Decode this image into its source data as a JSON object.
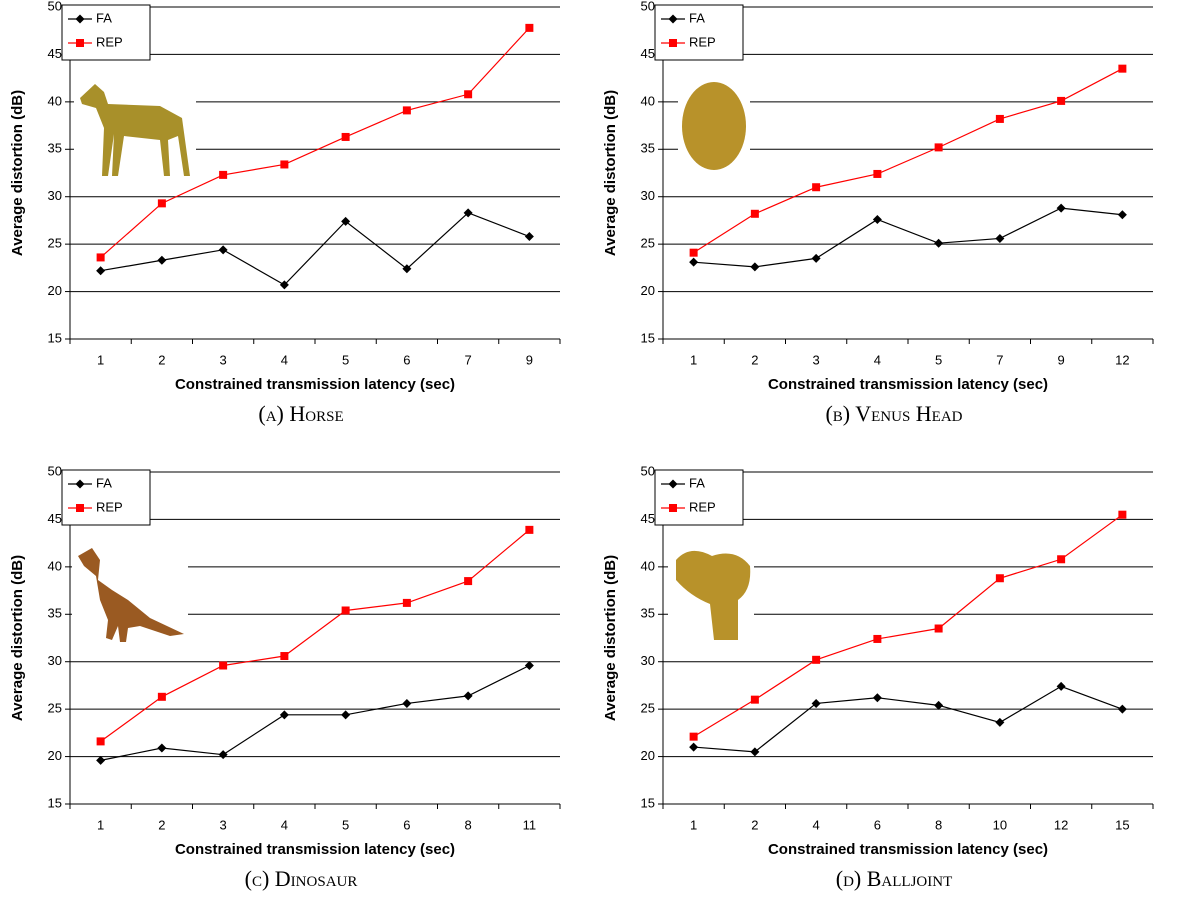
{
  "chart_data": [
    {
      "type": "line",
      "caption": "(a) Horse",
      "xlabel": "Constrained transmission latency (sec)",
      "ylabel": "Average distortion (dB)",
      "categories": [
        "1",
        "2",
        "3",
        "4",
        "5",
        "6",
        "7",
        "9"
      ],
      "series": [
        {
          "name": "FA",
          "color": "#000000",
          "marker": "diamond",
          "values": [
            22.2,
            23.3,
            24.4,
            20.7,
            27.4,
            22.4,
            28.3,
            25.8
          ]
        },
        {
          "name": "REP",
          "color": "#ff0000",
          "marker": "square",
          "values": [
            23.6,
            29.3,
            32.3,
            33.4,
            36.3,
            39.1,
            40.8,
            47.8
          ]
        }
      ],
      "ylim": [
        15,
        50
      ],
      "yticks": [
        15,
        20,
        25,
        30,
        35,
        40,
        45,
        50
      ],
      "grid": true,
      "legend": "top-left"
    },
    {
      "type": "line",
      "caption": "(b) Venus Head",
      "xlabel": "Constrained transmission latency (sec)",
      "ylabel": "Average distortion (dB)",
      "categories": [
        "1",
        "2",
        "3",
        "4",
        "5",
        "7",
        "9",
        "12"
      ],
      "series": [
        {
          "name": "FA",
          "color": "#000000",
          "marker": "diamond",
          "values": [
            23.1,
            22.6,
            23.5,
            27.6,
            25.1,
            25.6,
            28.8,
            28.1
          ]
        },
        {
          "name": "REP",
          "color": "#ff0000",
          "marker": "square",
          "values": [
            24.1,
            28.2,
            31.0,
            32.4,
            35.2,
            38.2,
            40.1,
            43.5
          ]
        }
      ],
      "ylim": [
        15,
        50
      ],
      "yticks": [
        15,
        20,
        25,
        30,
        35,
        40,
        45,
        50
      ],
      "grid": true,
      "legend": "top-left"
    },
    {
      "type": "line",
      "caption": "(c) Dinosaur",
      "xlabel": "Constrained transmission latency (sec)",
      "ylabel": "Average distortion (dB)",
      "categories": [
        "1",
        "2",
        "3",
        "4",
        "5",
        "6",
        "8",
        "11"
      ],
      "series": [
        {
          "name": "FA",
          "color": "#000000",
          "marker": "diamond",
          "values": [
            19.6,
            20.9,
            20.2,
            24.4,
            24.4,
            25.6,
            26.4,
            29.6
          ]
        },
        {
          "name": "REP",
          "color": "#ff0000",
          "marker": "square",
          "values": [
            21.6,
            26.3,
            29.6,
            30.6,
            35.4,
            36.2,
            38.5,
            43.9
          ]
        }
      ],
      "ylim": [
        15,
        50
      ],
      "yticks": [
        15,
        20,
        25,
        30,
        35,
        40,
        45,
        50
      ],
      "grid": true,
      "legend": "top-left"
    },
    {
      "type": "line",
      "caption": "(d) Balljoint",
      "xlabel": "Constrained transmission latency (sec)",
      "ylabel": "Average distortion (dB)",
      "categories": [
        "1",
        "2",
        "4",
        "6",
        "8",
        "10",
        "12",
        "15"
      ],
      "series": [
        {
          "name": "FA",
          "color": "#000000",
          "marker": "diamond",
          "values": [
            21.0,
            20.5,
            25.6,
            26.2,
            25.4,
            23.6,
            27.4,
            25.0
          ]
        },
        {
          "name": "REP",
          "color": "#ff0000",
          "marker": "square",
          "values": [
            22.1,
            26.0,
            30.2,
            32.4,
            33.5,
            38.8,
            40.8,
            45.5
          ]
        }
      ],
      "ylim": [
        15,
        50
      ],
      "yticks": [
        15,
        20,
        25,
        30,
        35,
        40,
        45,
        50
      ],
      "grid": true,
      "legend": "top-left"
    }
  ]
}
